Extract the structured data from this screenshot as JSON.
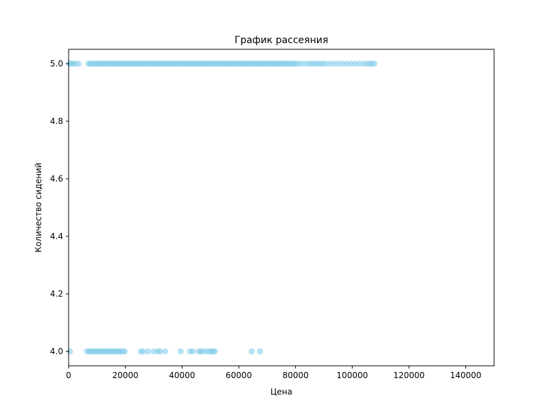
{
  "chart_data": {
    "type": "scatter",
    "title": "График рассеяния",
    "xlabel": "Цена",
    "ylabel": "Количество сидений",
    "xlim": [
      0,
      150000
    ],
    "ylim": [
      3.95,
      5.05
    ],
    "x_ticks": [
      0,
      20000,
      40000,
      60000,
      80000,
      100000,
      120000,
      140000
    ],
    "y_ticks": [
      4.0,
      4.2,
      4.4,
      4.6,
      4.8,
      5.0
    ],
    "grid": false,
    "legend": "none",
    "color": "#87CEEB",
    "alpha": 0.6,
    "series": [
      {
        "points": [
          [
            300,
            5.0
          ],
          [
            800,
            5.0
          ],
          [
            1500,
            5.0
          ],
          [
            2300,
            5.0
          ],
          [
            3500,
            5.0
          ],
          [
            7000,
            5.0
          ],
          [
            7600,
            5.0
          ],
          [
            8200,
            5.0
          ],
          [
            8800,
            5.0
          ],
          [
            9400,
            5.0
          ],
          [
            10000,
            5.0
          ],
          [
            10600,
            5.0
          ],
          [
            11200,
            5.0
          ],
          [
            11800,
            5.0
          ],
          [
            12400,
            5.0
          ],
          [
            13000,
            5.0
          ],
          [
            13600,
            5.0
          ],
          [
            14200,
            5.0
          ],
          [
            14800,
            5.0
          ],
          [
            15400,
            5.0
          ],
          [
            16000,
            5.0
          ],
          [
            16600,
            5.0
          ],
          [
            17200,
            5.0
          ],
          [
            17800,
            5.0
          ],
          [
            18400,
            5.0
          ],
          [
            19000,
            5.0
          ],
          [
            19600,
            5.0
          ],
          [
            20200,
            5.0
          ],
          [
            20800,
            5.0
          ],
          [
            21400,
            5.0
          ],
          [
            22000,
            5.0
          ],
          [
            22600,
            5.0
          ],
          [
            23200,
            5.0
          ],
          [
            23800,
            5.0
          ],
          [
            24400,
            5.0
          ],
          [
            25000,
            5.0
          ],
          [
            25600,
            5.0
          ],
          [
            26200,
            5.0
          ],
          [
            26800,
            5.0
          ],
          [
            27400,
            5.0
          ],
          [
            28000,
            5.0
          ],
          [
            28600,
            5.0
          ],
          [
            29200,
            5.0
          ],
          [
            29800,
            5.0
          ],
          [
            30400,
            5.0
          ],
          [
            31000,
            5.0
          ],
          [
            31600,
            5.0
          ],
          [
            32200,
            5.0
          ],
          [
            32800,
            5.0
          ],
          [
            33400,
            5.0
          ],
          [
            34000,
            5.0
          ],
          [
            34600,
            5.0
          ],
          [
            35200,
            5.0
          ],
          [
            35800,
            5.0
          ],
          [
            36400,
            5.0
          ],
          [
            37000,
            5.0
          ],
          [
            37600,
            5.0
          ],
          [
            38200,
            5.0
          ],
          [
            38800,
            5.0
          ],
          [
            39400,
            5.0
          ],
          [
            40000,
            5.0
          ],
          [
            40600,
            5.0
          ],
          [
            41200,
            5.0
          ],
          [
            41800,
            5.0
          ],
          [
            42400,
            5.0
          ],
          [
            43000,
            5.0
          ],
          [
            43600,
            5.0
          ],
          [
            44200,
            5.0
          ],
          [
            44800,
            5.0
          ],
          [
            45400,
            5.0
          ],
          [
            46000,
            5.0
          ],
          [
            46600,
            5.0
          ],
          [
            47200,
            5.0
          ],
          [
            47800,
            5.0
          ],
          [
            48400,
            5.0
          ],
          [
            49000,
            5.0
          ],
          [
            49600,
            5.0
          ],
          [
            50200,
            5.0
          ],
          [
            50800,
            5.0
          ],
          [
            51400,
            5.0
          ],
          [
            52000,
            5.0
          ],
          [
            52600,
            5.0
          ],
          [
            53200,
            5.0
          ],
          [
            53800,
            5.0
          ],
          [
            54400,
            5.0
          ],
          [
            55000,
            5.0
          ],
          [
            55600,
            5.0
          ],
          [
            56200,
            5.0
          ],
          [
            56800,
            5.0
          ],
          [
            57400,
            5.0
          ],
          [
            58000,
            5.0
          ],
          [
            58600,
            5.0
          ],
          [
            59200,
            5.0
          ],
          [
            59800,
            5.0
          ],
          [
            60400,
            5.0
          ],
          [
            61000,
            5.0
          ],
          [
            61600,
            5.0
          ],
          [
            62200,
            5.0
          ],
          [
            62800,
            5.0
          ],
          [
            63400,
            5.0
          ],
          [
            64000,
            5.0
          ],
          [
            64600,
            5.0
          ],
          [
            65200,
            5.0
          ],
          [
            65800,
            5.0
          ],
          [
            66400,
            5.0
          ],
          [
            67000,
            5.0
          ],
          [
            67600,
            5.0
          ],
          [
            68200,
            5.0
          ],
          [
            68800,
            5.0
          ],
          [
            69400,
            5.0
          ],
          [
            70000,
            5.0
          ],
          [
            70600,
            5.0
          ],
          [
            71200,
            5.0
          ],
          [
            71800,
            5.0
          ],
          [
            72400,
            5.0
          ],
          [
            73000,
            5.0
          ],
          [
            73600,
            5.0
          ],
          [
            74200,
            5.0
          ],
          [
            74800,
            5.0
          ],
          [
            75400,
            5.0
          ],
          [
            76000,
            5.0
          ],
          [
            76600,
            5.0
          ],
          [
            77200,
            5.0
          ],
          [
            77800,
            5.0
          ],
          [
            78400,
            5.0
          ],
          [
            79000,
            5.0
          ],
          [
            79700,
            5.0
          ],
          [
            80500,
            5.0
          ],
          [
            81500,
            5.0
          ],
          [
            83000,
            5.0
          ],
          [
            84500,
            5.0
          ],
          [
            85500,
            5.0
          ],
          [
            86500,
            5.0
          ],
          [
            87500,
            5.0
          ],
          [
            88500,
            5.0
          ],
          [
            89500,
            5.0
          ],
          [
            90500,
            5.0
          ],
          [
            92000,
            5.0
          ],
          [
            93500,
            5.0
          ],
          [
            95000,
            5.0
          ],
          [
            96500,
            5.0
          ],
          [
            98000,
            5.0
          ],
          [
            99500,
            5.0
          ],
          [
            101000,
            5.0
          ],
          [
            102500,
            5.0
          ],
          [
            104000,
            5.0
          ],
          [
            105300,
            5.0
          ],
          [
            106200,
            5.0
          ],
          [
            107000,
            5.0
          ],
          [
            107800,
            5.0
          ],
          [
            500,
            4.0
          ],
          [
            6500,
            4.0
          ],
          [
            7200,
            4.0
          ],
          [
            7800,
            4.0
          ],
          [
            8400,
            4.0
          ],
          [
            9000,
            4.0
          ],
          [
            9600,
            4.0
          ],
          [
            10200,
            4.0
          ],
          [
            10800,
            4.0
          ],
          [
            11400,
            4.0
          ],
          [
            12000,
            4.0
          ],
          [
            12600,
            4.0
          ],
          [
            13200,
            4.0
          ],
          [
            13800,
            4.0
          ],
          [
            14400,
            4.0
          ],
          [
            15000,
            4.0
          ],
          [
            15600,
            4.0
          ],
          [
            16200,
            4.0
          ],
          [
            16800,
            4.0
          ],
          [
            17400,
            4.0
          ],
          [
            18000,
            4.0
          ],
          [
            18600,
            4.0
          ],
          [
            19200,
            4.0
          ],
          [
            19800,
            4.0
          ],
          [
            25500,
            4.0
          ],
          [
            26200,
            4.0
          ],
          [
            28000,
            4.0
          ],
          [
            30000,
            4.0
          ],
          [
            31500,
            4.0
          ],
          [
            32200,
            4.0
          ],
          [
            34000,
            4.0
          ],
          [
            39500,
            4.0
          ],
          [
            42800,
            4.0
          ],
          [
            43700,
            4.0
          ],
          [
            45800,
            4.0
          ],
          [
            46500,
            4.0
          ],
          [
            47200,
            4.0
          ],
          [
            48500,
            4.0
          ],
          [
            49500,
            4.0
          ],
          [
            50500,
            4.0
          ],
          [
            51000,
            4.0
          ],
          [
            51500,
            4.0
          ],
          [
            64500,
            4.0
          ],
          [
            67500,
            4.0
          ]
        ]
      }
    ]
  }
}
